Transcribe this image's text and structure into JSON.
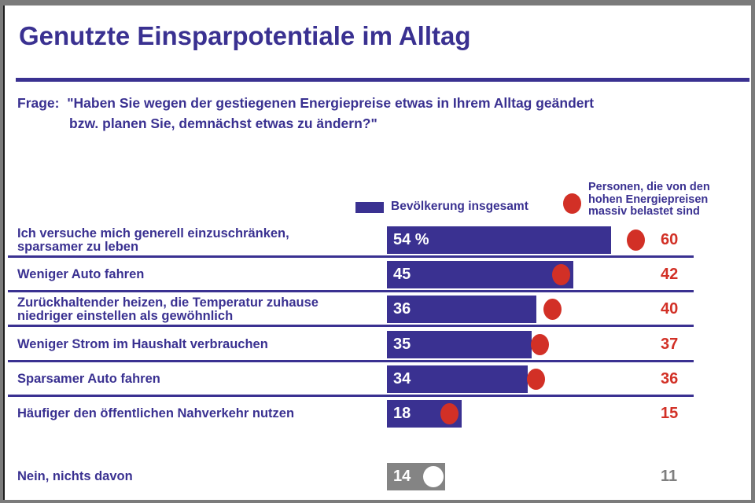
{
  "title": "Genutzte Einsparpotentiale im Alltag",
  "question": {
    "line1": "Frage:  \"Haben Sie wegen der gestiegenen Energiepreise etwas in Ihrem Alltag geändert",
    "line2": "bzw. planen Sie, demnächst etwas zu ändern?\""
  },
  "legend": {
    "bar_label": "Bevölkerung insgesamt",
    "dot_label_lines": [
      "Personen, die von den",
      "hohen Energiepreisen",
      "massiv belastet sind"
    ]
  },
  "colors": {
    "indigo": "#3A3191",
    "red": "#D23026",
    "muted_bar_gray": "#848484",
    "muted_value_gray": "#7f7f7f",
    "bar_value_text": "#ffffff",
    "frame_gray": "#7b7b7b"
  },
  "chart_data": {
    "type": "bar",
    "orientation": "horizontal",
    "unit": "%",
    "xlim": [
      0,
      70
    ],
    "grid": false,
    "legend_position": "top",
    "title": "Genutzte Einsparpotentiale im Alltag",
    "categories": [
      "Ich versuche mich generell einzuschränken, sparsamer zu leben",
      "Weniger Auto fahren",
      "Zurückhaltender heizen, die Temperatur zuhause niedriger einstellen als gewöhnlich",
      "Weniger Strom im Haushalt verbrauchen",
      "Sparsamer Auto fahren",
      "Häufiger den öffentlichen Nahverkehr nutzen",
      "Nein, nichts davon"
    ],
    "series": [
      {
        "name": "Bevölkerung insgesamt",
        "marker": "bar",
        "color": "#3A3191",
        "values": [
          54,
          45,
          36,
          35,
          34,
          18,
          14
        ]
      },
      {
        "name": "Personen, die von den hohen Energiepreisen massiv belastet sind",
        "marker": "dot",
        "color": "#D23026",
        "values": [
          60,
          42,
          40,
          37,
          36,
          15,
          11
        ]
      }
    ],
    "rows": [
      {
        "label_lines": [
          "Ich versuche mich generell einzuschränken,",
          "sparsamer zu leben"
        ],
        "bar_value": 54,
        "bar_label": "54 %",
        "dot_value": 60,
        "dot_label": "60",
        "muted": false
      },
      {
        "label_lines": [
          "Weniger Auto fahren"
        ],
        "bar_value": 45,
        "bar_label": "45",
        "dot_value": 42,
        "dot_label": "42",
        "muted": false
      },
      {
        "label_lines": [
          "Zurückhaltender heizen, die Temperatur zuhause",
          "niedriger einstellen als gewöhnlich"
        ],
        "bar_value": 36,
        "bar_label": "36",
        "dot_value": 40,
        "dot_label": "40",
        "muted": false
      },
      {
        "label_lines": [
          "Weniger Strom im Haushalt verbrauchen"
        ],
        "bar_value": 35,
        "bar_label": "35",
        "dot_value": 37,
        "dot_label": "37",
        "muted": false
      },
      {
        "label_lines": [
          "Sparsamer Auto fahren"
        ],
        "bar_value": 34,
        "bar_label": "34",
        "dot_value": 36,
        "dot_label": "36",
        "muted": false
      },
      {
        "label_lines": [
          "Häufiger den öffentlichen Nahverkehr nutzen"
        ],
        "bar_value": 18,
        "bar_label": "18",
        "dot_value": 15,
        "dot_label": "15",
        "muted": false
      },
      {
        "label_lines": [
          "Nein, nichts davon"
        ],
        "bar_value": 14,
        "bar_label": "14",
        "dot_value": 11,
        "dot_label": "11",
        "muted": true
      }
    ]
  }
}
